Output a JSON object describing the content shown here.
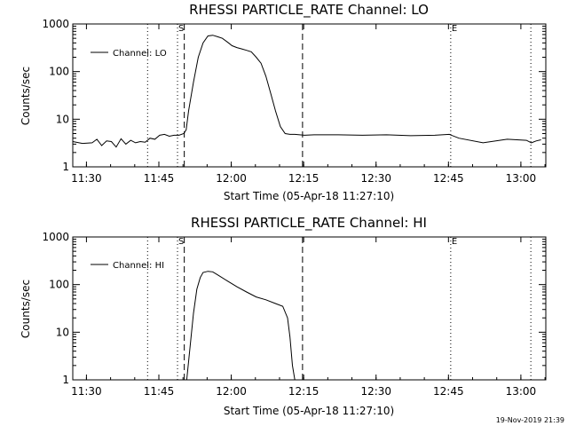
{
  "chart_data": [
    {
      "type": "line",
      "title": "RHESSI PARTICLE_RATE Channel: LO",
      "xlabel": "Start Time (05-Apr-18 11:27:10)",
      "ylabel": "Counts/sec",
      "y_scale": "log",
      "ylim": [
        1,
        1000
      ],
      "x_unit": "minutes after 11:27:10",
      "xlim": [
        0,
        98
      ],
      "x_ticks": [
        "11:30",
        "11:45",
        "12:00",
        "12:15",
        "12:30",
        "12:45",
        "13:00"
      ],
      "y_ticks": [
        "1",
        "10",
        "100",
        "1000"
      ],
      "legend": "Channel: LO",
      "markers": {
        "S": 21.7,
        "E": 78.3
      },
      "vlines_dotted": [
        15.5,
        21.7,
        78.3,
        94.9
      ],
      "vlines_dashed": [
        23.1,
        47.6
      ],
      "series": [
        {
          "name": "Channel: LO",
          "x": [
            0,
            2,
            4,
            5,
            6,
            7,
            8,
            9,
            10,
            11,
            12,
            13,
            14,
            15,
            16,
            17,
            18,
            19,
            20,
            21,
            22,
            23,
            23.5,
            24,
            25,
            26,
            27,
            28,
            29,
            30,
            31,
            32,
            33,
            34,
            35,
            36,
            37,
            38,
            39,
            40,
            41,
            42,
            43,
            44,
            45,
            46,
            47,
            48,
            50,
            55,
            60,
            65,
            70,
            75,
            78,
            80,
            85,
            90,
            94,
            95,
            96,
            97
          ],
          "values": [
            3.4,
            3.1,
            3.2,
            3.8,
            2.8,
            3.5,
            3.4,
            2.6,
            3.9,
            3.0,
            3.6,
            3.2,
            3.4,
            3.3,
            4.0,
            3.8,
            4.6,
            4.8,
            4.4,
            4.6,
            4.6,
            5.0,
            6.0,
            15,
            60,
            200,
            400,
            560,
            580,
            540,
            500,
            420,
            350,
            320,
            300,
            280,
            260,
            200,
            150,
            80,
            35,
            15,
            7,
            5,
            4.8,
            4.8,
            4.7,
            4.6,
            4.7,
            4.7,
            4.6,
            4.7,
            4.5,
            4.6,
            4.8,
            4.0,
            3.2,
            3.8,
            3.6,
            3.2,
            3.5,
            3.7
          ]
        }
      ]
    },
    {
      "type": "line",
      "title": "RHESSI PARTICLE_RATE Channel: HI",
      "xlabel": "Start Time (05-Apr-18 11:27:10)",
      "ylabel": "Counts/sec",
      "y_scale": "log",
      "ylim": [
        1,
        1000
      ],
      "x_unit": "minutes after 11:27:10",
      "xlim": [
        0,
        98
      ],
      "x_ticks": [
        "11:30",
        "11:45",
        "12:00",
        "12:15",
        "12:30",
        "12:45",
        "13:00"
      ],
      "y_ticks": [
        "1",
        "10",
        "100",
        "1000"
      ],
      "legend": "Channel: HI",
      "markers": {
        "S": 21.7,
        "E": 78.3
      },
      "vlines_dotted": [
        15.5,
        21.7,
        78.3,
        94.9
      ],
      "vlines_dashed": [
        23.1,
        47.6
      ],
      "series": [
        {
          "name": "Channel: HI",
          "x": [
            23.6,
            24.3,
            25,
            25.7,
            26.4,
            27,
            28,
            29,
            30,
            32,
            34,
            36,
            38,
            40,
            42,
            43.5,
            44.5,
            45,
            45.5,
            46
          ],
          "values": [
            1,
            5,
            25,
            80,
            140,
            180,
            190,
            185,
            160,
            120,
            90,
            70,
            55,
            48,
            40,
            35,
            20,
            8,
            2,
            1
          ]
        }
      ]
    }
  ],
  "footer": {
    "timestamp": "19-Nov-2019 21:39"
  }
}
